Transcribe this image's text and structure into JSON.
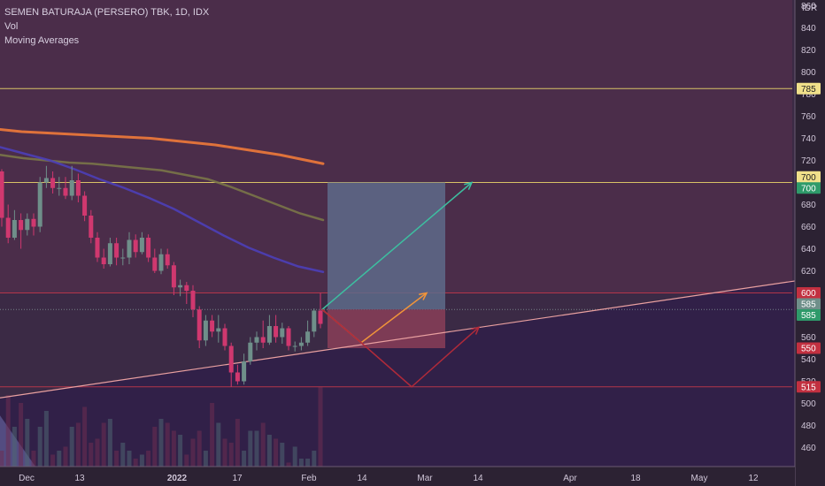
{
  "legend": {
    "title": "SEMEN BATURAJA (PERSERO) TBK, 1D, IDX",
    "vol": "Vol",
    "ma": "Moving Averages"
  },
  "currency": "IDR",
  "colors": {
    "background": "#3b2a45",
    "up": "#6f8f8a",
    "down": "#d0386f",
    "ma_orange": "#f07a3a",
    "ma_olive": "#7a7548",
    "ma_blue": "#4d3fb8",
    "level_yellow": "#e9d36a",
    "level_red": "#c0384a",
    "trendline": "#e9a0a0",
    "target_box": "#5e6b8a",
    "stop_box": "#8a3e58",
    "arrow_teal": "#3dbfa0",
    "arrow_orange": "#f0943a",
    "arrow_red": "#b02a3a"
  },
  "chart_data": {
    "type": "candlestick",
    "title": "SEMEN BATURAJA (PERSERO) TBK, 1D, IDX",
    "ylim": [
      445,
      865
    ],
    "y_ticks": [
      460,
      480,
      500,
      520,
      540,
      560,
      580,
      600,
      620,
      640,
      660,
      680,
      700,
      720,
      740,
      760,
      780,
      800,
      820,
      840,
      860
    ],
    "x_tick_labels": [
      "Dec",
      "13",
      "2022",
      "17",
      "Feb",
      "14",
      "Mar",
      "14",
      "Apr",
      "18",
      "May",
      "12"
    ],
    "x_tick_bold": [
      "2022"
    ],
    "candles": [
      [
        710,
        712,
        660,
        668
      ],
      [
        668,
        680,
        645,
        650
      ],
      [
        650,
        675,
        648,
        666
      ],
      [
        666,
        672,
        640,
        657
      ],
      [
        657,
        672,
        652,
        667
      ],
      [
        667,
        672,
        652,
        660
      ],
      [
        660,
        705,
        655,
        700
      ],
      [
        700,
        715,
        695,
        704
      ],
      [
        704,
        710,
        690,
        695
      ],
      [
        695,
        705,
        688,
        695
      ],
      [
        695,
        705,
        685,
        688
      ],
      [
        688,
        715,
        684,
        702
      ],
      [
        702,
        708,
        682,
        688
      ],
      [
        688,
        692,
        665,
        670
      ],
      [
        670,
        675,
        645,
        650
      ],
      [
        650,
        655,
        628,
        632
      ],
      [
        632,
        640,
        622,
        626
      ],
      [
        626,
        650,
        624,
        645
      ],
      [
        645,
        650,
        625,
        632
      ],
      [
        632,
        640,
        625,
        632
      ],
      [
        632,
        655,
        626,
        648
      ],
      [
        648,
        653,
        632,
        637
      ],
      [
        637,
        655,
        635,
        650
      ],
      [
        650,
        653,
        628,
        632
      ],
      [
        632,
        640,
        618,
        620
      ],
      [
        620,
        640,
        617,
        635
      ],
      [
        635,
        640,
        622,
        625
      ],
      [
        625,
        628,
        598,
        605
      ],
      [
        605,
        612,
        597,
        607
      ],
      [
        607,
        610,
        590,
        602
      ],
      [
        602,
        607,
        578,
        585
      ],
      [
        585,
        588,
        550,
        557
      ],
      [
        557,
        580,
        552,
        575
      ],
      [
        575,
        580,
        560,
        565
      ],
      [
        565,
        580,
        555,
        568
      ],
      [
        568,
        572,
        548,
        552
      ],
      [
        552,
        555,
        515,
        528
      ],
      [
        528,
        535,
        517,
        520
      ],
      [
        520,
        545,
        517,
        538
      ],
      [
        538,
        560,
        535,
        555
      ],
      [
        555,
        565,
        548,
        560
      ],
      [
        560,
        575,
        550,
        555
      ],
      [
        555,
        580,
        553,
        570
      ],
      [
        570,
        580,
        555,
        560
      ],
      [
        560,
        573,
        554,
        568
      ],
      [
        568,
        570,
        548,
        552
      ],
      [
        552,
        556,
        547,
        552
      ],
      [
        552,
        560,
        548,
        555
      ],
      [
        555,
        575,
        552,
        565
      ],
      [
        565,
        586,
        560,
        584
      ],
      [
        584,
        600,
        568,
        572
      ]
    ],
    "volumes": [
      0.2,
      0.9,
      0.5,
      0.8,
      0.6,
      0.2,
      0.5,
      0.7,
      0.15,
      0.2,
      0.25,
      0.5,
      0.55,
      0.75,
      0.3,
      0.35,
      0.55,
      0.6,
      0.2,
      0.3,
      0.2,
      0.1,
      0.15,
      0.2,
      0.5,
      0.6,
      0.55,
      0.45,
      0.4,
      0.15,
      0.35,
      0.45,
      0.2,
      0.8,
      0.55,
      0.35,
      0.3,
      0.6,
      0.2,
      0.45,
      0.45,
      0.55,
      0.4,
      0.35,
      0.3,
      0.05,
      0.25,
      0.1,
      0.1,
      0.2,
      1.0
    ],
    "moving_averages": [
      {
        "color": "orange",
        "values": [
          748,
          746,
          745,
          744,
          743,
          742,
          741,
          740,
          738,
          736,
          734,
          731,
          728,
          725,
          721,
          717
        ]
      },
      {
        "color": "olive",
        "values": [
          725,
          722,
          720,
          718,
          717,
          715,
          713,
          711,
          707,
          703,
          696,
          688,
          680,
          672,
          666
        ]
      },
      {
        "color": "blue",
        "values": [
          732,
          726,
          720,
          712,
          703,
          695,
          686,
          676,
          664,
          652,
          641,
          632,
          624,
          619
        ]
      }
    ],
    "levels": [
      {
        "value": 785,
        "label": "785",
        "style": "yellow"
      },
      {
        "value": 700,
        "label": "700",
        "style": "yellow"
      },
      {
        "value": 600,
        "label": "600",
        "style": "red"
      },
      {
        "value": 515,
        "label": "515",
        "style": "red"
      }
    ],
    "price_badges": [
      {
        "value": 785,
        "label": "785",
        "bg": "#f0e08a",
        "fg": "#222222"
      },
      {
        "value": 705,
        "label": "700",
        "bg": "#f0e08a",
        "fg": "#222222"
      },
      {
        "value": 695,
        "label": "700",
        "bg": "#2e9a6a",
        "fg": "#ffffff"
      },
      {
        "value": 600,
        "label": "600",
        "bg": "#c23040",
        "fg": "#ffffff"
      },
      {
        "value": 590,
        "label": "585",
        "bg": "#6f8f8a",
        "fg": "#ffffff"
      },
      {
        "value": 580,
        "label": "585",
        "bg": "#2e9a6a",
        "fg": "#ffffff"
      },
      {
        "value": 550,
        "label": "550",
        "bg": "#c23040",
        "fg": "#ffffff"
      },
      {
        "value": 515,
        "label": "515",
        "bg": "#c23040",
        "fg": "#ffffff"
      }
    ],
    "position": {
      "entry": 585,
      "target": 700,
      "stop": 550
    },
    "trendline": {
      "start": 505,
      "end": 614
    }
  }
}
